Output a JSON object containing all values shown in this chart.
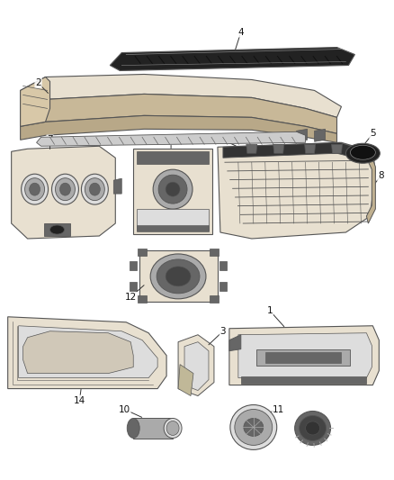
{
  "bg_color": "#ffffff",
  "lc": "#555555",
  "dark": "#333333",
  "fc": "#e8e0d0",
  "gray": "#aaaaaa",
  "darkgray": "#666666",
  "lightgray": "#dddddd",
  "black": "#111111"
}
